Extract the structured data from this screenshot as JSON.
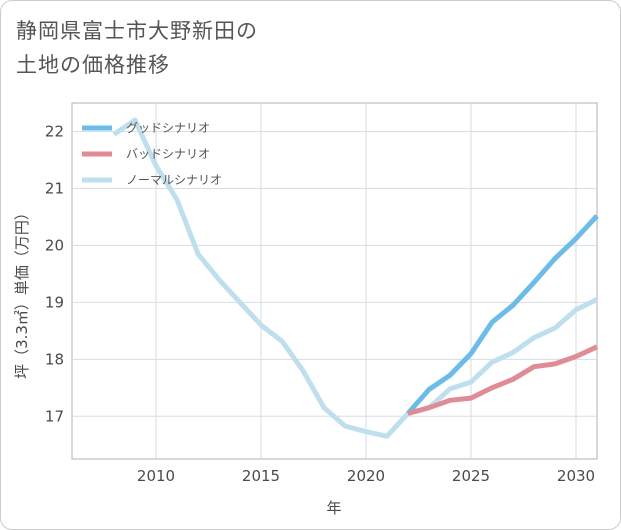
{
  "title_lines": [
    "静岡県富士市大野新田の",
    "土地の価格推移"
  ],
  "chart_data": {
    "type": "line",
    "xlabel": "年",
    "ylabel": "坪（3.3㎡）単価（万円）",
    "xlim": [
      2006,
      2031
    ],
    "ylim": [
      16.25,
      22.5
    ],
    "xticks": [
      2010,
      2015,
      2020,
      2025,
      2030
    ],
    "yticks": [
      17,
      18,
      19,
      20,
      21,
      22
    ],
    "grid": true,
    "legend_position": "top-left",
    "series": [
      {
        "name": "グッドシナリオ",
        "color": "#6cbcea",
        "x": [
          2022,
          2023,
          2024,
          2025,
          2026,
          2027,
          2028,
          2029,
          2030,
          2031
        ],
        "y": [
          17.05,
          17.47,
          17.72,
          18.1,
          18.65,
          18.95,
          19.35,
          19.77,
          20.12,
          20.52
        ]
      },
      {
        "name": "バッドシナリオ",
        "color": "#e08c96",
        "x": [
          2022,
          2023,
          2024,
          2025,
          2026,
          2027,
          2028,
          2029,
          2030,
          2031
        ],
        "y": [
          17.05,
          17.15,
          17.28,
          17.32,
          17.5,
          17.65,
          17.87,
          17.92,
          18.05,
          18.22
        ]
      },
      {
        "name": "ノーマルシナリオ",
        "color": "#bfdfee",
        "x": [
          2008,
          2009,
          2010,
          2011,
          2012,
          2013,
          2014,
          2015,
          2016,
          2017,
          2018,
          2019,
          2020,
          2021,
          2022,
          2023,
          2024,
          2025,
          2026,
          2027,
          2028,
          2029,
          2030,
          2031
        ],
        "y": [
          21.95,
          22.2,
          21.4,
          20.8,
          19.85,
          19.4,
          19.0,
          18.6,
          18.32,
          17.8,
          17.15,
          16.83,
          16.73,
          16.65,
          17.05,
          17.15,
          17.48,
          17.6,
          17.95,
          18.12,
          18.38,
          18.55,
          18.87,
          19.05
        ]
      }
    ]
  }
}
